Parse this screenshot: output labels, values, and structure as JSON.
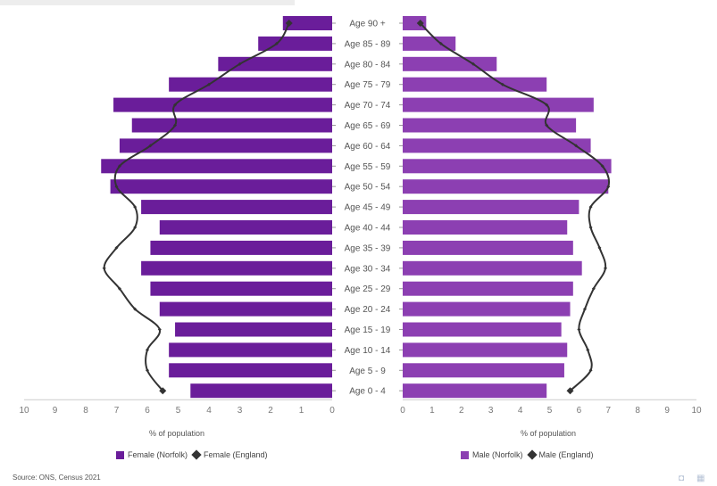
{
  "chart_data": {
    "type": "bar",
    "orientation": "horizontal-population-pyramid",
    "age_groups": [
      "Age 90 +",
      "Age 85 - 89",
      "Age 80 - 84",
      "Age 75 - 79",
      "Age 70 - 74",
      "Age 65 - 69",
      "Age 60 - 64",
      "Age 55 - 59",
      "Age 50 - 54",
      "Age 45 - 49",
      "Age 40 - 44",
      "Age 35 - 39",
      "Age 30 - 34",
      "Age 25 - 29",
      "Age 20 - 24",
      "Age 15 - 19",
      "Age 10 - 14",
      "Age 5 - 9",
      "Age 0 - 4"
    ],
    "series": [
      {
        "name": "Female (Norfolk)",
        "side": "left",
        "kind": "bar",
        "color": "#6a1d9a",
        "values": [
          1.6,
          2.4,
          3.7,
          5.3,
          7.1,
          6.5,
          6.9,
          7.5,
          7.2,
          6.2,
          5.6,
          5.9,
          6.2,
          5.9,
          5.6,
          5.1,
          5.3,
          5.3,
          4.6
        ]
      },
      {
        "name": "Female (England)",
        "side": "left",
        "kind": "line",
        "color": "#333333",
        "values": [
          1.4,
          1.8,
          3.0,
          4.0,
          5.1,
          5.1,
          5.9,
          6.9,
          7.0,
          6.4,
          6.4,
          7.0,
          7.4,
          6.9,
          6.4,
          5.6,
          6.0,
          6.0,
          5.5
        ]
      },
      {
        "name": "Male (Norfolk)",
        "side": "right",
        "kind": "bar",
        "color": "#8c3fb2",
        "values": [
          0.8,
          1.8,
          3.2,
          4.9,
          6.5,
          5.9,
          6.4,
          7.1,
          7.0,
          6.0,
          5.6,
          5.8,
          6.1,
          5.8,
          5.7,
          5.4,
          5.6,
          5.5,
          4.9
        ]
      },
      {
        "name": "Male (England)",
        "side": "right",
        "kind": "line",
        "color": "#333333",
        "values": [
          0.6,
          1.3,
          2.4,
          3.4,
          4.9,
          4.9,
          5.9,
          6.8,
          7.0,
          6.4,
          6.4,
          6.7,
          6.9,
          6.5,
          6.2,
          6.0,
          6.3,
          6.4,
          5.7
        ]
      }
    ],
    "x_ticks_left": [
      "10",
      "9",
      "8",
      "7",
      "6",
      "5",
      "4",
      "3",
      "2",
      "1",
      "0"
    ],
    "x_ticks_right": [
      "0",
      "1",
      "2",
      "3",
      "4",
      "5",
      "6",
      "7",
      "8",
      "9",
      "10"
    ],
    "xlabel_left": "% of population",
    "xlabel_right": "% of population",
    "xlim": [
      0,
      10
    ]
  },
  "legend": {
    "female_norfolk": "Female (Norfolk)",
    "female_england": "Female (England)",
    "male_norfolk": "Male (Norfolk)",
    "male_england": "Male (England)"
  },
  "source": "Source: ONS, Census 2021",
  "icons": [
    "camera-icon",
    "grid-icon"
  ]
}
